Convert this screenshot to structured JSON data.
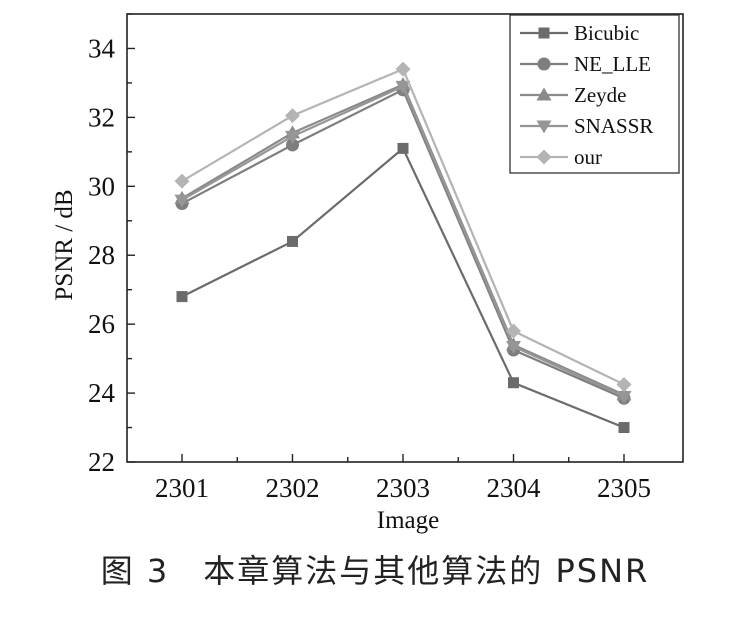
{
  "caption": "图 3　本章算法与其他算法的 PSNR",
  "chart_data": {
    "type": "line",
    "xlabel": "Image",
    "ylabel": "PSNR / dB",
    "categories": [
      "2301",
      "2302",
      "2303",
      "2304",
      "2305"
    ],
    "ylim": [
      22,
      35
    ],
    "yticks": [
      22,
      24,
      26,
      28,
      30,
      32,
      34
    ],
    "grid": false,
    "legend_position": "top-right",
    "series": [
      {
        "name": "Bicubic",
        "marker": "square",
        "color": "#6b6b6b",
        "values": [
          26.8,
          28.4,
          31.1,
          24.3,
          23.0
        ]
      },
      {
        "name": "NE_LLE",
        "marker": "circle",
        "color": "#7e7e7e",
        "values": [
          29.5,
          31.2,
          32.8,
          25.25,
          23.85
        ]
      },
      {
        "name": "Zeyde",
        "marker": "triangle-up",
        "color": "#8a8a8a",
        "values": [
          29.65,
          31.55,
          32.95,
          25.4,
          23.95
        ]
      },
      {
        "name": "SNASSR",
        "marker": "triangle-down",
        "color": "#969696",
        "values": [
          29.6,
          31.45,
          32.9,
          25.35,
          23.9
        ]
      },
      {
        "name": "our",
        "marker": "diamond",
        "color": "#b4b4b4",
        "values": [
          30.15,
          32.05,
          33.4,
          25.8,
          24.25
        ]
      }
    ]
  }
}
